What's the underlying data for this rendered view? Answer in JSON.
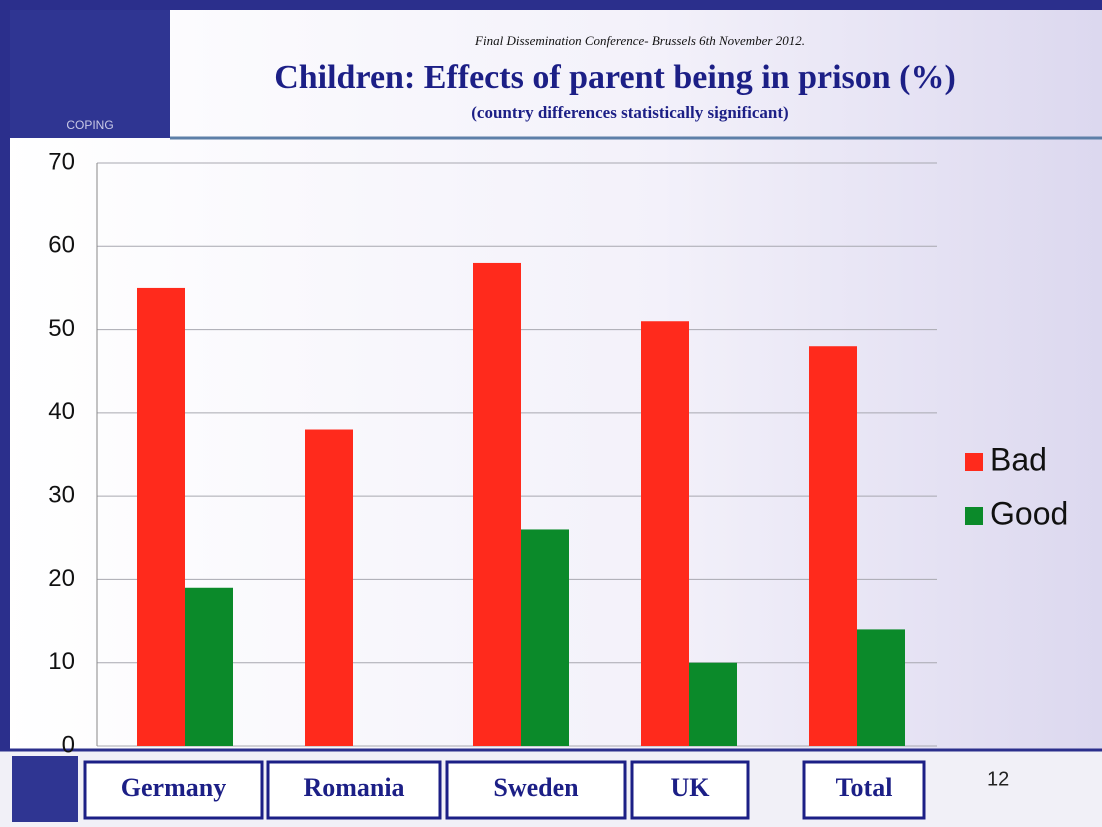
{
  "conference": "Final Dissemination Conference- Brussels 6th November 2012.",
  "logo_text": "COPING",
  "page_number": "12",
  "chart_data": {
    "type": "bar",
    "title": "Children: Effects of parent being in prison (%)",
    "subtitle": "(country differences statistically significant)",
    "categories": [
      "Germany",
      "Romania",
      "Sweden",
      "UK",
      "Total"
    ],
    "series": [
      {
        "name": "Bad",
        "color": "#ff2a1c",
        "values": [
          55,
          38,
          58,
          51,
          48
        ]
      },
      {
        "name": "Good",
        "color": "#0b8a2a",
        "values": [
          19,
          null,
          26,
          10,
          14
        ]
      }
    ],
    "ylim": [
      0,
      70
    ],
    "yticks": [
      0,
      10,
      20,
      30,
      40,
      50,
      60,
      70
    ],
    "grid": true,
    "legend": "right"
  }
}
